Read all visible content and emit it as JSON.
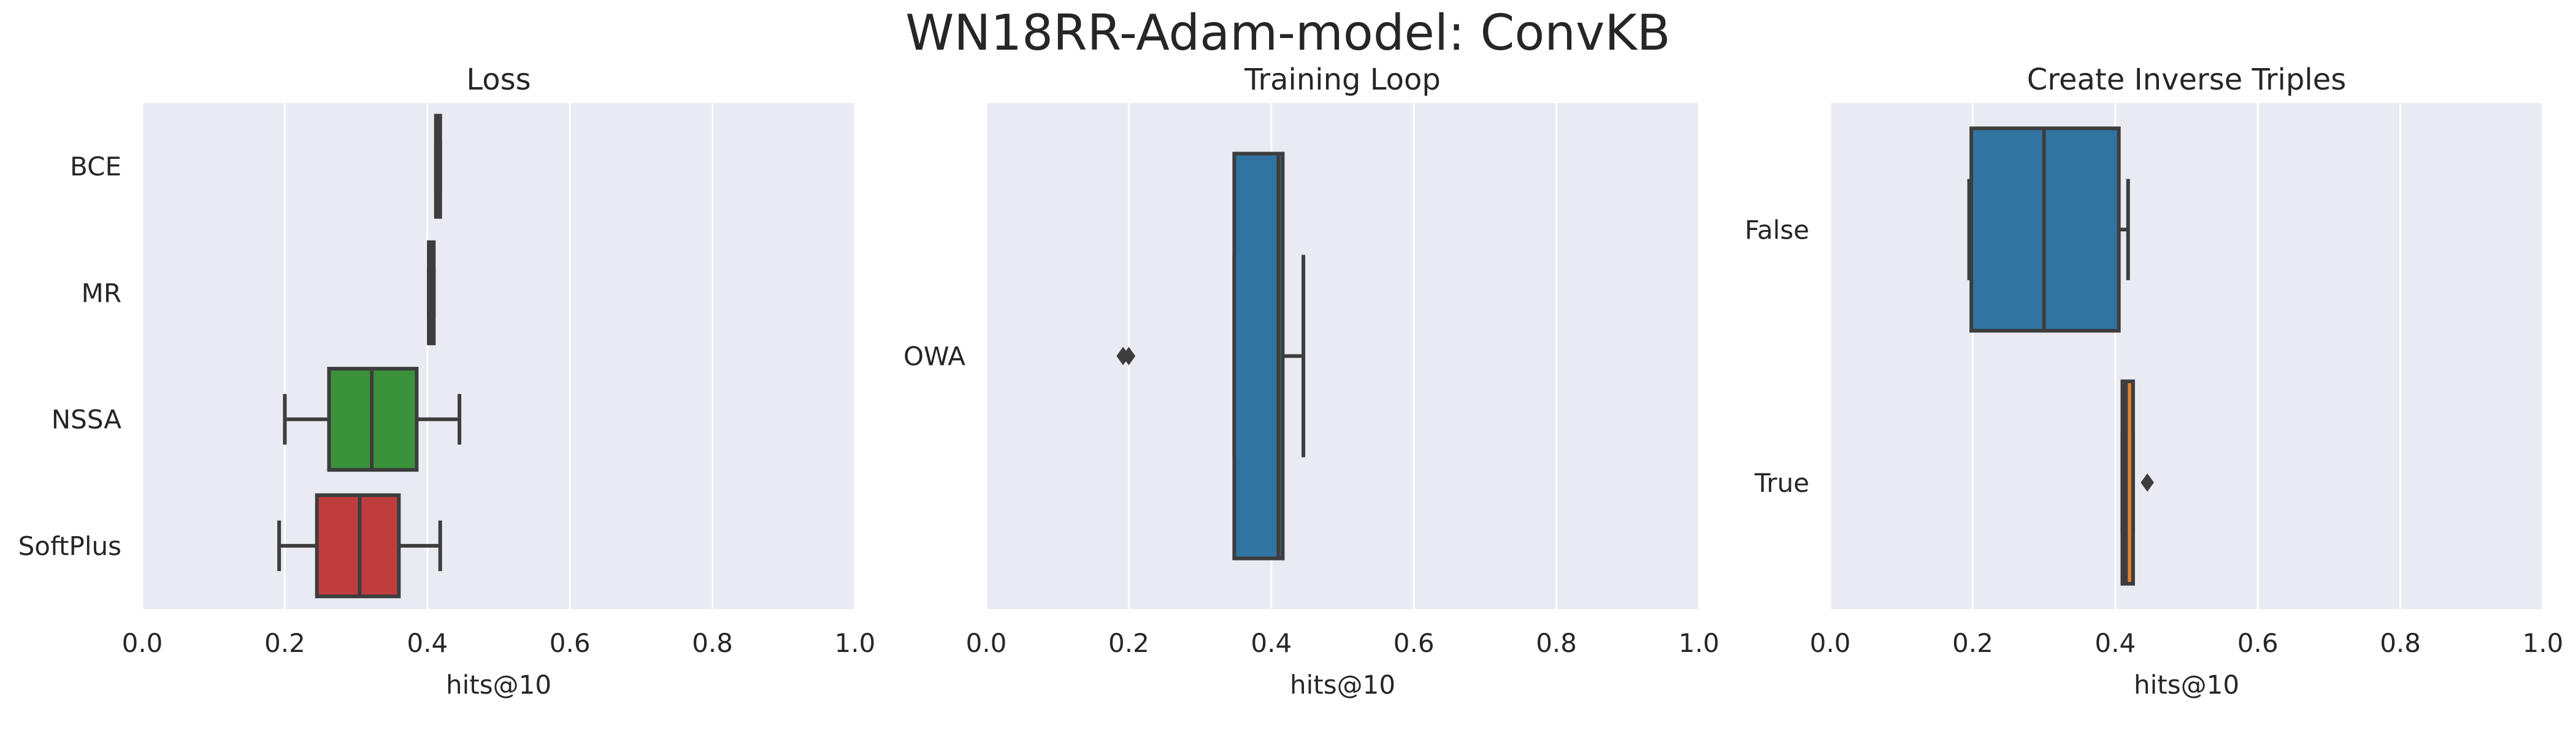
{
  "suptitle": "WN18RR-Adam-model: ConvKB",
  "colors": {
    "background": "#eaeaf2",
    "grid": "#ffffff",
    "line": "#3d3d3d",
    "blue": "#3274a1",
    "orange": "#e1812c",
    "green": "#3a923a",
    "red": "#c03d3e"
  },
  "chart_data": [
    {
      "type": "box",
      "orientation": "horizontal",
      "title": "Loss",
      "xlabel": "hits@10",
      "xlim": [
        0.0,
        1.0
      ],
      "xticks": [
        "0.0",
        "0.2",
        "0.4",
        "0.6",
        "0.8",
        "1.0"
      ],
      "grid": true,
      "categories": [
        "BCE",
        "MR",
        "NSSA",
        "SoftPlus"
      ],
      "boxes": [
        {
          "category": "BCE",
          "color": "#3274a1",
          "whisker_low": 0.412,
          "q1": 0.412,
          "median": 0.415,
          "q3": 0.418,
          "whisker_high": 0.418,
          "outliers": []
        },
        {
          "category": "MR",
          "color": "#e1812c",
          "whisker_low": 0.402,
          "q1": 0.402,
          "median": 0.405,
          "q3": 0.409,
          "whisker_high": 0.409,
          "outliers": []
        },
        {
          "category": "NSSA",
          "color": "#3a923a",
          "whisker_low": 0.2,
          "q1": 0.262,
          "median": 0.322,
          "q3": 0.385,
          "whisker_high": 0.445,
          "outliers": []
        },
        {
          "category": "SoftPlus",
          "color": "#c03d3e",
          "whisker_low": 0.192,
          "q1": 0.245,
          "median": 0.305,
          "q3": 0.36,
          "whisker_high": 0.418,
          "outliers": []
        }
      ]
    },
    {
      "type": "box",
      "orientation": "horizontal",
      "title": "Training Loop",
      "xlabel": "hits@10",
      "xlim": [
        0.0,
        1.0
      ],
      "xticks": [
        "0.0",
        "0.2",
        "0.4",
        "0.6",
        "0.8",
        "1.0"
      ],
      "grid": true,
      "categories": [
        "OWA"
      ],
      "boxes": [
        {
          "category": "OWA",
          "color": "#3274a1",
          "whisker_low": 0.348,
          "q1": 0.348,
          "median": 0.41,
          "q3": 0.416,
          "whisker_high": 0.445,
          "outliers": [
            0.192,
            0.2
          ]
        }
      ]
    },
    {
      "type": "box",
      "orientation": "horizontal",
      "title": "Create Inverse Triples",
      "xlabel": "hits@10",
      "xlim": [
        0.0,
        1.0
      ],
      "xticks": [
        "0.0",
        "0.2",
        "0.4",
        "0.6",
        "0.8",
        "1.0"
      ],
      "grid": true,
      "categories": [
        "False",
        "True"
      ],
      "boxes": [
        {
          "category": "False",
          "color": "#3274a1",
          "whisker_low": 0.195,
          "q1": 0.198,
          "median": 0.3,
          "q3": 0.405,
          "whisker_high": 0.418,
          "outliers": []
        },
        {
          "category": "True",
          "color": "#e1812c",
          "whisker_low": 0.41,
          "q1": 0.41,
          "median": 0.415,
          "q3": 0.425,
          "whisker_high": 0.425,
          "outliers": [
            0.445
          ]
        }
      ]
    }
  ]
}
